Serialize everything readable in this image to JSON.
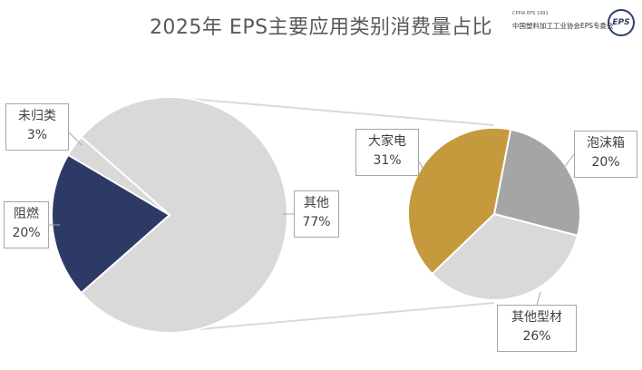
{
  "title": "2025年 EPS主要应用类别消费量占比",
  "logo": {
    "small_text": "CPPIA EPS 1991",
    "org_text": "中国塑料加工工业协会EPS专委会",
    "badge_text": "EPS"
  },
  "chart_data": [
    {
      "type": "pie",
      "categories": [
        "其他",
        "阻燃",
        "未归类"
      ],
      "values": [
        77,
        20,
        3
      ],
      "value_labels": [
        "77%",
        "20%",
        "3%"
      ],
      "colors": [
        "#d9d9d9",
        "#2e3a66",
        "#d9d9d9"
      ]
    },
    {
      "type": "pie",
      "categories": [
        "泡沫箱",
        "其他型材",
        "大家电"
      ],
      "values": [
        20,
        26,
        31
      ],
      "value_labels": [
        "20%",
        "26%",
        "31%"
      ],
      "colors": [
        "#a5a5a5",
        "#d9d9d9",
        "#c49a3c"
      ]
    }
  ]
}
